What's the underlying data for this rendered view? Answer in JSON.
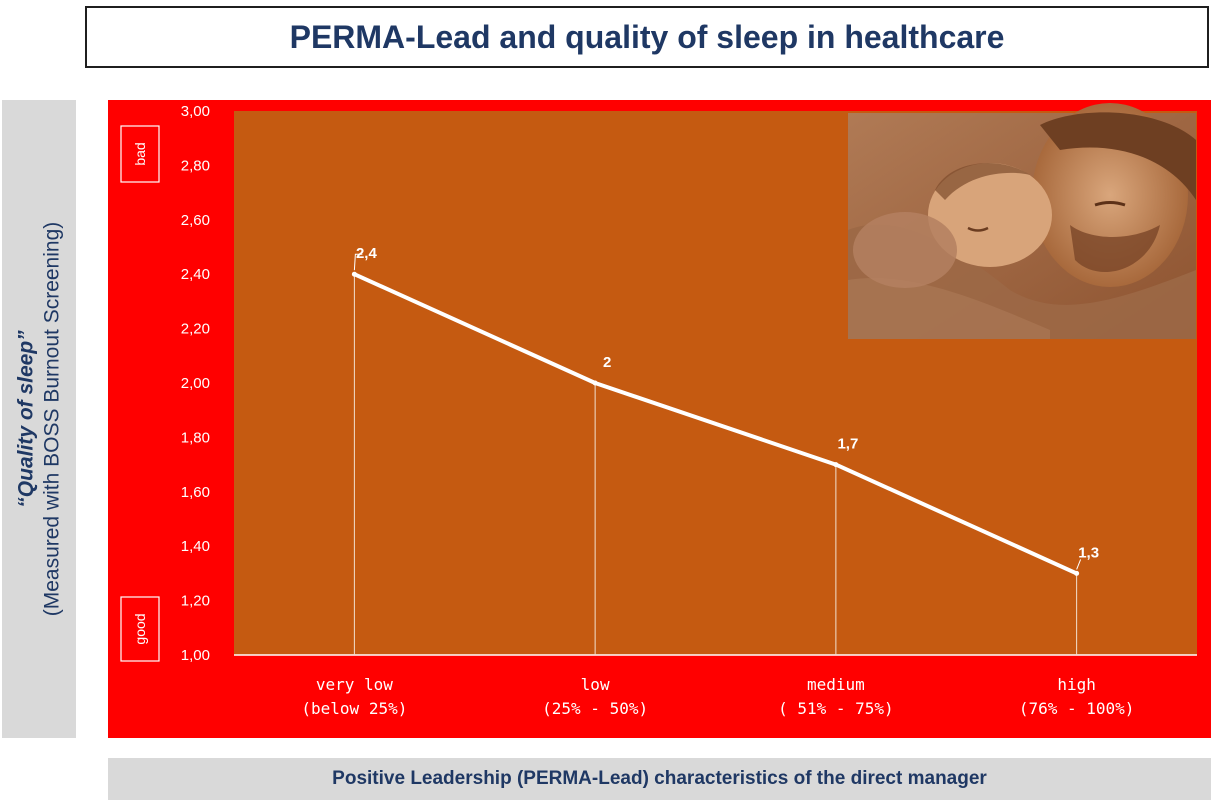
{
  "page": {
    "title": "PERMA-Lead and quality of sleep in healthcare",
    "ylabel_line1": "“Quality of sleep”",
    "ylabel_line2": "(Measured with BOSS Burnout Screening)",
    "xlabel": "Positive Leadership (PERMA-Lead) characteristics of the direct manager",
    "marker_bad": "bad",
    "marker_good": "good"
  },
  "colors": {
    "frame": "#ff0000",
    "plot_bg": "#c55a11",
    "line": "#ffffff",
    "title_text": "#1f3864",
    "label_box": "#d9d9d9"
  },
  "chart_data": {
    "type": "line",
    "categories": [
      [
        "very low",
        "(below 25%)"
      ],
      [
        "low",
        "(25% - 50%)"
      ],
      [
        "medium",
        "( 51% - 75%)"
      ],
      [
        "high",
        "(76% - 100%)"
      ]
    ],
    "values": [
      2.4,
      2.0,
      1.7,
      1.3
    ],
    "data_labels": [
      "2,4",
      "2",
      "1,7",
      "1,3"
    ],
    "ylim": [
      1.0,
      3.0
    ],
    "yticks": [
      "1,00",
      "1,20",
      "1,40",
      "1,60",
      "1,80",
      "2,00",
      "2,20",
      "2,40",
      "2,60",
      "2,80",
      "3,00"
    ],
    "title": "PERMA-Lead and quality of sleep in healthcare",
    "xlabel": "Positive Leadership (PERMA-Lead) characteristics of the direct manager",
    "ylabel": "“Quality of sleep” (Measured with BOSS Burnout Screening)",
    "grid": false,
    "drop_lines": true
  },
  "photo": {
    "subject": "father-with-sleeping-baby-photo"
  }
}
